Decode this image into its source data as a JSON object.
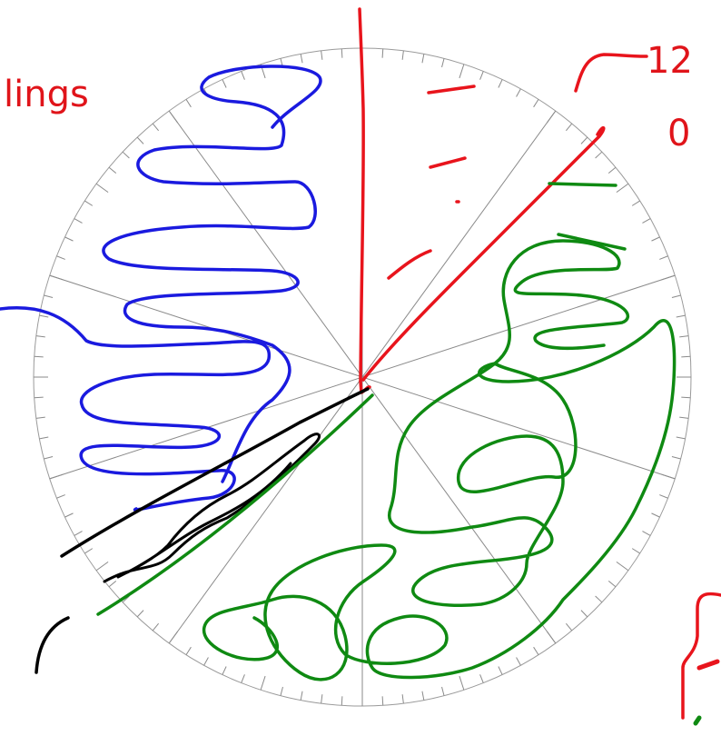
{
  "annotations": {
    "top_left": "lings",
    "top_right_number": "12",
    "top_right_zero": "0"
  }
}
